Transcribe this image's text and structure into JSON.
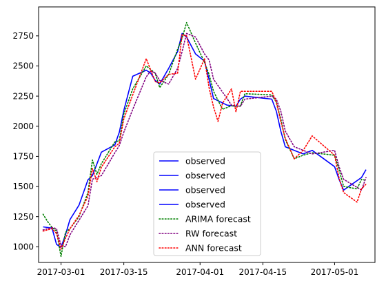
{
  "chart_data": {
    "type": "line",
    "title": "",
    "xlabel": "",
    "ylabel": "",
    "xlim": [
      "2017-02-24",
      "2017-05-10"
    ],
    "ylim": [
      870,
      2990
    ],
    "x_ticks": [
      "2017-03-01",
      "2017-03-15",
      "2017-04-01",
      "2017-04-15",
      "2017-05-01"
    ],
    "y_ticks": [
      1000,
      1250,
      1500,
      1750,
      2000,
      2250,
      2500,
      2750
    ],
    "legend_position": "lower center",
    "colors": {
      "observed": "#0000ff",
      "arima": "#008000",
      "rw": "#800080",
      "ann": "#ff0000"
    },
    "series": [
      {
        "name": "observed",
        "style": "solid",
        "x": [
          "2017-02-25",
          "2017-02-27"
        ],
        "y": [
          1165,
          1155
        ]
      },
      {
        "name": "observed",
        "style": "solid",
        "x": [
          "2017-02-27",
          "2017-02-28",
          "2017-03-01",
          "2017-03-02",
          "2017-03-03",
          "2017-03-05",
          "2017-03-07",
          "2017-03-08",
          "2017-03-10",
          "2017-03-13",
          "2017-03-14",
          "2017-03-15",
          "2017-03-17",
          "2017-03-20",
          "2017-03-21",
          "2017-03-22",
          "2017-03-23",
          "2017-03-25"
        ],
        "y": [
          1155,
          1020,
          995,
          1100,
          1225,
          1345,
          1555,
          1590,
          1785,
          1845,
          1950,
          2130,
          2415,
          2465,
          2440,
          2380,
          2350,
          2480
        ]
      },
      {
        "name": "observed",
        "style": "solid",
        "x": [
          "2017-03-25",
          "2017-03-27",
          "2017-03-28",
          "2017-03-29",
          "2017-03-31",
          "2017-04-02",
          "2017-04-03",
          "2017-04-04",
          "2017-04-07",
          "2017-04-08",
          "2017-04-09"
        ],
        "y": [
          2480,
          2620,
          2770,
          2740,
          2600,
          2540,
          2390,
          2230,
          2175,
          2170,
          2165
        ]
      },
      {
        "name": "observed",
        "style": "solid",
        "x": [
          "2017-04-09",
          "2017-04-10",
          "2017-04-11",
          "2017-04-17",
          "2017-04-18",
          "2017-04-19",
          "2017-04-20",
          "2017-04-22",
          "2017-04-24",
          "2017-04-26",
          "2017-05-01",
          "2017-05-02",
          "2017-05-03",
          "2017-05-07",
          "2017-05-08"
        ],
        "y": [
          2165,
          2225,
          2250,
          2225,
          2125,
          1960,
          1830,
          1800,
          1770,
          1800,
          1665,
          1560,
          1470,
          1575,
          1640
        ]
      },
      {
        "name": "ARIMA forecast",
        "style": "dotted",
        "x": [
          "2017-02-25",
          "2017-02-26",
          "2017-02-27",
          "2017-02-28",
          "2017-03-01",
          "2017-03-02",
          "2017-03-03",
          "2017-03-05",
          "2017-03-07",
          "2017-03-08",
          "2017-03-09",
          "2017-03-10",
          "2017-03-13",
          "2017-03-14",
          "2017-03-15",
          "2017-03-17",
          "2017-03-20",
          "2017-03-22",
          "2017-03-23",
          "2017-03-25",
          "2017-03-27",
          "2017-03-28",
          "2017-03-29",
          "2017-03-31",
          "2017-04-02",
          "2017-04-03",
          "2017-04-04",
          "2017-04-06",
          "2017-04-08",
          "2017-04-09",
          "2017-04-10",
          "2017-04-11",
          "2017-04-17",
          "2017-04-18",
          "2017-04-19",
          "2017-04-20",
          "2017-04-22",
          "2017-04-24",
          "2017-04-26",
          "2017-05-01",
          "2017-05-02",
          "2017-05-03",
          "2017-05-06",
          "2017-05-07",
          "2017-05-08"
        ],
        "y": [
          1270,
          1210,
          1160,
          1130,
          920,
          1120,
          1150,
          1250,
          1450,
          1720,
          1600,
          1690,
          1870,
          1880,
          2100,
          2310,
          2500,
          2440,
          2320,
          2430,
          2640,
          2730,
          2860,
          2690,
          2530,
          2430,
          2290,
          2140,
          2170,
          2165,
          2170,
          2270,
          2260,
          2200,
          2060,
          1890,
          1730,
          1760,
          1780,
          1760,
          1640,
          1500,
          1480,
          1560,
          1550
        ]
      },
      {
        "name": "RW forecast",
        "style": "dotted",
        "x": [
          "2017-02-25",
          "2017-02-27",
          "2017-02-28",
          "2017-03-01",
          "2017-03-02",
          "2017-03-03",
          "2017-03-05",
          "2017-03-07",
          "2017-03-08",
          "2017-03-10",
          "2017-03-13",
          "2017-03-14",
          "2017-03-15",
          "2017-03-17",
          "2017-03-20",
          "2017-03-21",
          "2017-03-22",
          "2017-03-23",
          "2017-03-25",
          "2017-03-27",
          "2017-03-28",
          "2017-03-29",
          "2017-03-31",
          "2017-04-02",
          "2017-04-03",
          "2017-04-04",
          "2017-04-07",
          "2017-04-08",
          "2017-04-09",
          "2017-04-10",
          "2017-04-11",
          "2017-04-17",
          "2017-04-18",
          "2017-04-19",
          "2017-04-20",
          "2017-04-22",
          "2017-04-24",
          "2017-04-26",
          "2017-05-01",
          "2017-05-02",
          "2017-05-03",
          "2017-05-07",
          "2017-05-08"
        ],
        "y": [
          1140,
          1160,
          1150,
          1010,
          1000,
          1100,
          1220,
          1340,
          1560,
          1590,
          1780,
          1840,
          1950,
          2140,
          2410,
          2460,
          2440,
          2380,
          2350,
          2480,
          2620,
          2770,
          2740,
          2600,
          2550,
          2390,
          2230,
          2175,
          2170,
          2165,
          2225,
          2250,
          2225,
          2125,
          1960,
          1830,
          1800,
          1770,
          1800,
          1665,
          1560,
          1470,
          1575
        ]
      },
      {
        "name": "ANN forecast",
        "style": "dotted",
        "x": [
          "2017-02-25",
          "2017-02-27",
          "2017-02-28",
          "2017-03-01",
          "2017-03-02",
          "2017-03-03",
          "2017-03-05",
          "2017-03-07",
          "2017-03-08",
          "2017-03-09",
          "2017-03-10",
          "2017-03-13",
          "2017-03-14",
          "2017-03-15",
          "2017-03-17",
          "2017-03-20",
          "2017-03-22",
          "2017-03-23",
          "2017-03-25",
          "2017-03-27",
          "2017-03-28",
          "2017-03-29",
          "2017-03-31",
          "2017-04-02",
          "2017-04-03",
          "2017-04-04",
          "2017-04-05",
          "2017-04-06",
          "2017-04-08",
          "2017-04-09",
          "2017-04-10",
          "2017-04-11",
          "2017-04-17",
          "2017-04-18",
          "2017-04-19",
          "2017-04-20",
          "2017-04-22",
          "2017-04-24",
          "2017-04-26",
          "2017-05-01",
          "2017-05-02",
          "2017-05-03",
          "2017-05-06",
          "2017-05-07",
          "2017-05-08"
        ],
        "y": [
          1130,
          1150,
          1110,
          980,
          1070,
          1150,
          1260,
          1420,
          1650,
          1540,
          1660,
          1830,
          1860,
          2060,
          2260,
          2560,
          2370,
          2360,
          2430,
          2440,
          2760,
          2750,
          2390,
          2560,
          2320,
          2160,
          2040,
          2190,
          2310,
          2120,
          2290,
          2290,
          2290,
          2200,
          2040,
          1900,
          1730,
          1800,
          1920,
          1760,
          1570,
          1450,
          1370,
          1480,
          1520
        ]
      }
    ]
  }
}
